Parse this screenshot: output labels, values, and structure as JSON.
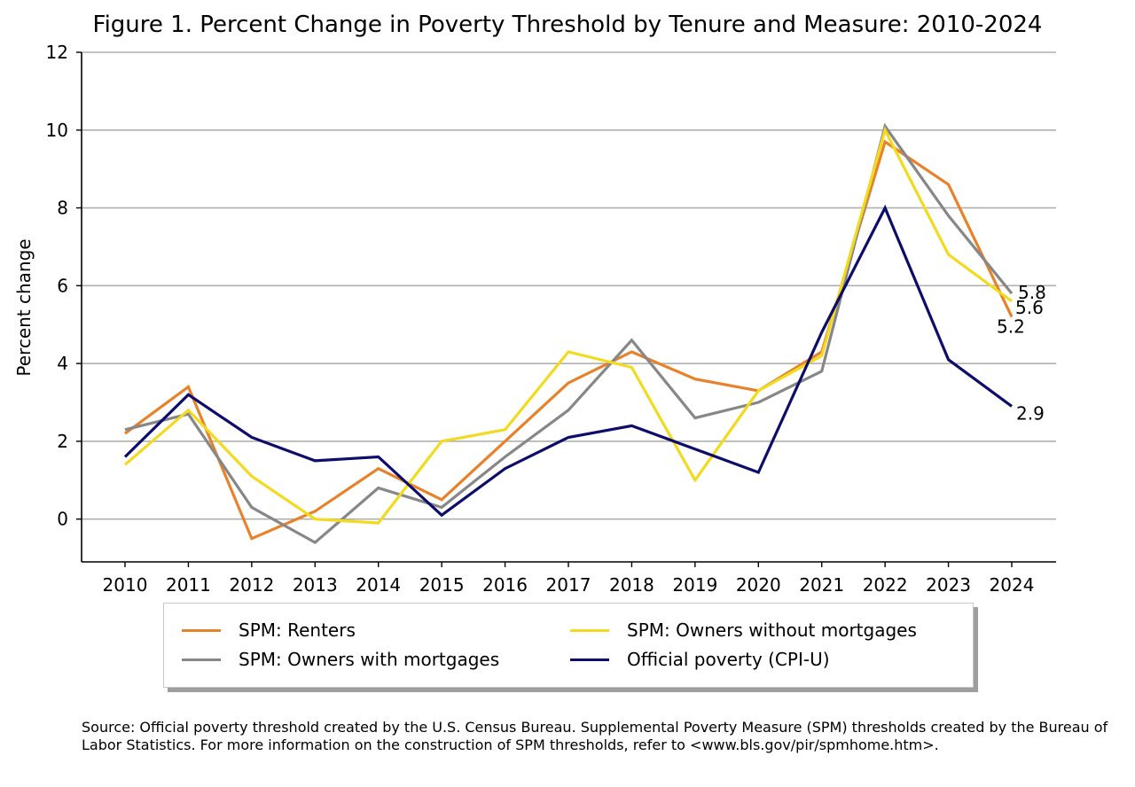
{
  "chart_data": {
    "type": "line",
    "title": "Figure 1. Percent Change in Poverty Threshold by Tenure and Measure: 2010-2024",
    "xlabel": "",
    "ylabel": "Percent change",
    "categories": [
      "2010",
      "2011",
      "2012",
      "2013",
      "2014",
      "2015",
      "2016",
      "2017",
      "2018",
      "2019",
      "2020",
      "2021",
      "2022",
      "2023",
      "2024"
    ],
    "ylim": [
      -1.1,
      12
    ],
    "yticks": [
      0,
      2,
      4,
      6,
      8,
      10,
      12
    ],
    "grid": "horizontal",
    "legend_position": "bottom",
    "series": [
      {
        "name": "SPM: Renters",
        "color": "#E8822A",
        "values": [
          2.2,
          3.4,
          -0.5,
          0.2,
          1.3,
          0.5,
          2.0,
          3.5,
          4.3,
          3.6,
          3.3,
          4.3,
          9.7,
          8.6,
          5.2
        ],
        "end_label": "5.2"
      },
      {
        "name": "SPM: Owners with mortgages",
        "color": "#878787",
        "values": [
          2.3,
          2.7,
          0.3,
          -0.6,
          0.8,
          0.3,
          1.6,
          2.8,
          4.6,
          2.6,
          3.0,
          3.8,
          10.1,
          7.8,
          5.8
        ],
        "end_label": "5.8"
      },
      {
        "name": "SPM: Owners without mortgages",
        "color": "#F2DA1E",
        "values": [
          1.4,
          2.8,
          1.1,
          0.0,
          -0.1,
          2.0,
          2.3,
          4.3,
          3.9,
          1.0,
          3.3,
          4.2,
          10.0,
          6.8,
          5.6
        ],
        "end_label": "5.6"
      },
      {
        "name": "Official poverty (CPI-U)",
        "color": "#0D0D6B",
        "values": [
          1.6,
          3.2,
          2.1,
          1.5,
          1.6,
          0.1,
          1.3,
          2.1,
          2.4,
          1.8,
          1.2,
          4.8,
          8.0,
          4.1,
          2.9
        ],
        "end_label": "2.9"
      }
    ]
  },
  "source_note": "Source: Official poverty threshold created by the U.S. Census Bureau. Supplemental Poverty Measure (SPM) thresholds created by the Bureau of Labor Statistics. For more information on the construction of SPM thresholds, refer to <www.bls.gov/pir/spmhome.htm>."
}
